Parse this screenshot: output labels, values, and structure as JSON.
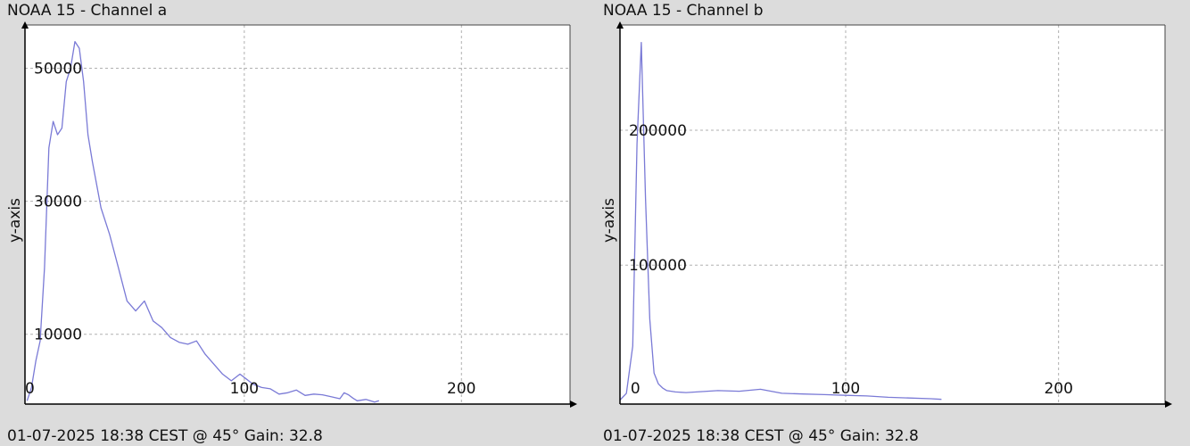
{
  "colors": {
    "background": "#dcdcdc",
    "plot_area": "#ffffff",
    "line": "#7a7ad6",
    "grid": "#b0b0b0",
    "axis": "#000000"
  },
  "panels": [
    {
      "title": "NOAA 15 - Channel a",
      "footer": "01-07-2025 18:38 CEST @ 45° Gain: 32.8"
    },
    {
      "title": "NOAA 15 - Channel b",
      "footer": "01-07-2025 18:38 CEST @ 45° Gain: 32.8"
    }
  ],
  "chart_data": [
    {
      "type": "line",
      "title": "NOAA 15 - Channel a",
      "xlabel": "",
      "ylabel": "y-axis",
      "xlim": [
        -1,
        250
      ],
      "ylim": [
        -500,
        56500
      ],
      "xticks": [
        0,
        100,
        200
      ],
      "yticks": [
        10000,
        30000,
        50000
      ],
      "grid": true,
      "x": [
        0,
        2,
        4,
        6,
        8,
        10,
        12,
        14,
        16,
        18,
        20,
        22,
        24,
        26,
        28,
        30,
        34,
        38,
        42,
        46,
        50,
        54,
        58,
        60,
        62,
        66,
        70,
        74,
        78,
        82,
        86,
        90,
        94,
        98,
        100,
        104,
        108,
        112,
        116,
        120,
        124,
        128,
        132,
        136,
        140,
        144,
        146,
        148,
        150,
        152,
        156,
        160,
        162
      ],
      "series": [
        {
          "values": [
            0,
            2000,
            6000,
            9000,
            20000,
            38000,
            42000,
            40000,
            41000,
            48000,
            50000,
            54000,
            53000,
            48000,
            40000,
            36000,
            29000,
            25000,
            20000,
            15000,
            13500,
            15000,
            12000,
            11500,
            11000,
            9500,
            8800,
            8500,
            9000,
            7000,
            5500,
            4000,
            3000,
            4000,
            3500,
            2500,
            2000,
            1800,
            1000,
            1200,
            1600,
            800,
            1000,
            900,
            600,
            300,
            1200,
            900,
            400,
            0,
            200,
            -200,
            0
          ]
        }
      ]
    },
    {
      "type": "line",
      "title": "NOAA 15 - Channel b",
      "xlabel": "",
      "ylabel": "y-axis",
      "xlim": [
        -6,
        250
      ],
      "ylim": [
        -3000,
        278000
      ],
      "xticks": [
        0,
        100,
        200
      ],
      "yticks": [
        100000,
        200000
      ],
      "grid": true,
      "x": [
        -6,
        -3,
        0,
        2,
        4,
        6,
        8,
        10,
        12,
        14,
        16,
        20,
        25,
        30,
        40,
        50,
        60,
        70,
        80,
        90,
        100,
        110,
        120,
        130,
        140,
        145
      ],
      "series": [
        {
          "values": [
            0,
            5000,
            40000,
            190000,
            265000,
            150000,
            60000,
            20000,
            12000,
            9000,
            7000,
            6000,
            5500,
            6000,
            7000,
            6500,
            8000,
            5000,
            4500,
            4000,
            3500,
            3000,
            2000,
            1500,
            1000,
            500
          ]
        }
      ]
    }
  ]
}
